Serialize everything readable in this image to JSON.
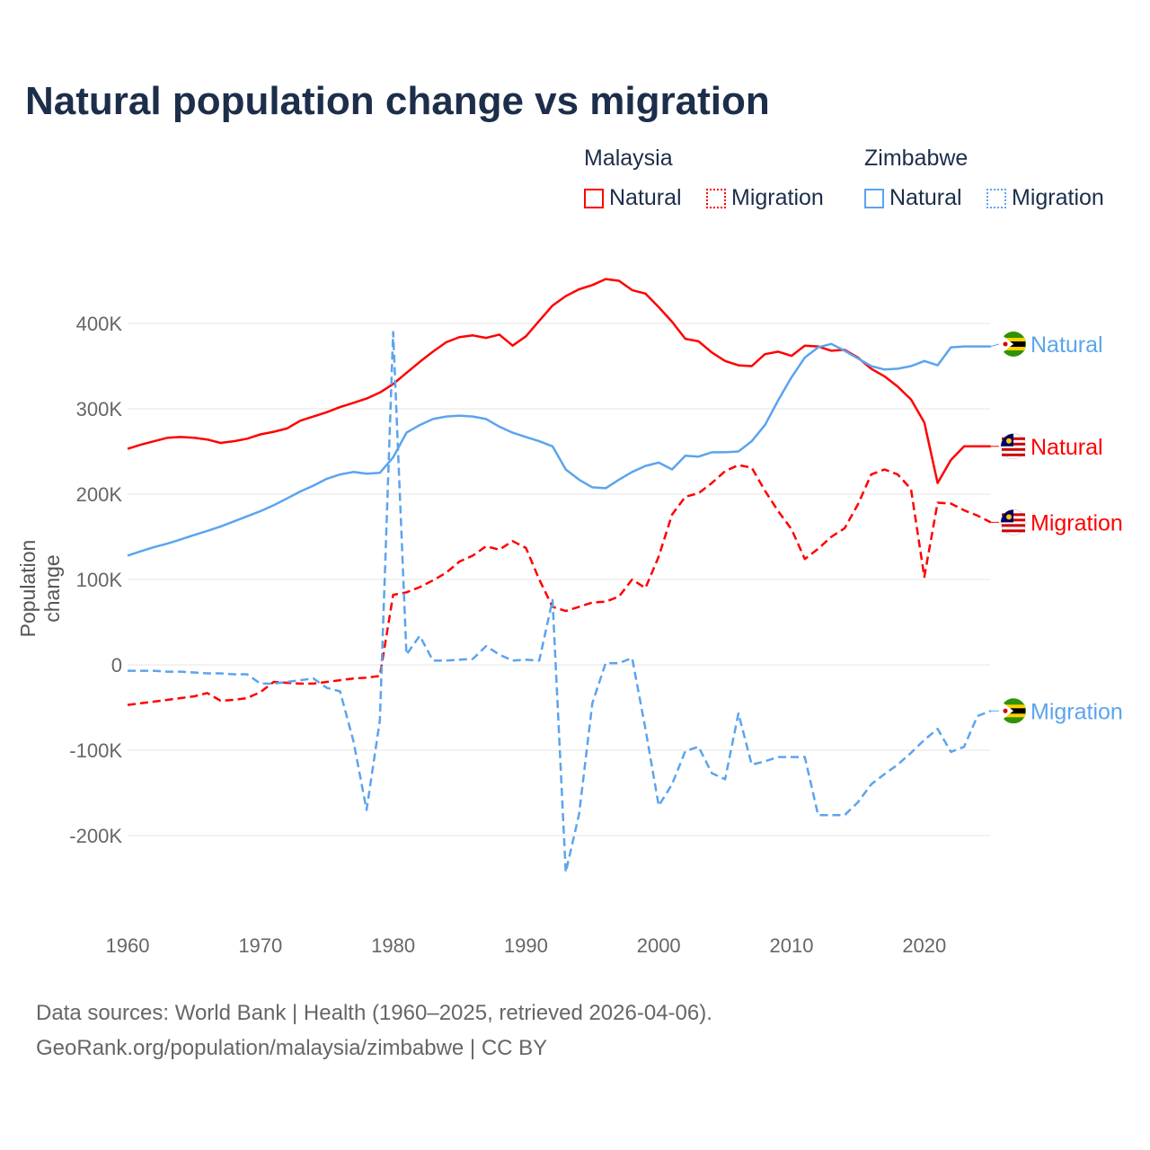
{
  "title": "Natural population change vs migration",
  "legend": {
    "groups": [
      {
        "name": "Malaysia",
        "items": [
          {
            "label": "Natural",
            "style": "solid"
          },
          {
            "label": "Migration",
            "style": "dotted"
          }
        ],
        "color": "#ff0000"
      },
      {
        "name": "Zimbabwe",
        "items": [
          {
            "label": "Natural",
            "style": "solid"
          },
          {
            "label": "Migration",
            "style": "dotted"
          }
        ],
        "color": "#5ba4ee"
      }
    ]
  },
  "footer": {
    "line1": "Data sources: World Bank | Health (1960–2025, retrieved 2026-04-06).",
    "line2": "GeoRank.org/population/malaysia/zimbabwe | CC BY"
  },
  "chart_data": {
    "type": "line",
    "title": "Natural population change vs migration",
    "xlabel": "",
    "ylabel": "Population change",
    "xlim": [
      1960,
      2025
    ],
    "ylim": [
      -270000,
      470000
    ],
    "xticks": [
      1960,
      1970,
      1980,
      1990,
      2000,
      2010,
      2020
    ],
    "xtick_labels": [
      "1960",
      "1970",
      "1980",
      "1990",
      "2000",
      "2010",
      "2020"
    ],
    "yticks": [
      -200000,
      -100000,
      0,
      100000,
      200000,
      300000,
      400000
    ],
    "ytick_labels": [
      "-200K",
      "-100K",
      "0",
      "100K",
      "200K",
      "300K",
      "400K"
    ],
    "grid": true,
    "x_start": 1960,
    "series": [
      {
        "name": "Malaysia Natural",
        "end_label": "Natural",
        "country": "Malaysia",
        "color": "#ff0000",
        "dash": false,
        "values": [
          253,
          258,
          262,
          266,
          267,
          266,
          264,
          260,
          262,
          265,
          270,
          273,
          277,
          286,
          291,
          296,
          302,
          307,
          312,
          319,
          329,
          342,
          355,
          367,
          378,
          384,
          386,
          383,
          387,
          374,
          385,
          403,
          421,
          432,
          440,
          445,
          452,
          450,
          439,
          435,
          419,
          402,
          382,
          379,
          366,
          356,
          351,
          350,
          364,
          367,
          362,
          374,
          373,
          368,
          369,
          360,
          347,
          338,
          326,
          311,
          284,
          213,
          240,
          256,
          256,
          256
        ]
      },
      {
        "name": "Malaysia Migration",
        "end_label": "Migration",
        "country": "Malaysia",
        "color": "#ff0000",
        "dash": true,
        "values": [
          -47,
          -45,
          -43,
          -41,
          -39,
          -37,
          -33,
          -42,
          -41,
          -39,
          -32,
          -20,
          -21,
          -22,
          -22,
          -20,
          -18,
          -16,
          -15,
          -13,
          82,
          85,
          91,
          99,
          108,
          121,
          128,
          139,
          135,
          145,
          137,
          100,
          68,
          63,
          68,
          73,
          74,
          80,
          100,
          90,
          127,
          176,
          197,
          201,
          213,
          227,
          234,
          231,
          204,
          180,
          159,
          124,
          136,
          150,
          160,
          188,
          223,
          229,
          223,
          206,
          103,
          190,
          189,
          181,
          175,
          167
        ]
      },
      {
        "name": "Zimbabwe Natural",
        "end_label": "Natural",
        "country": "Zimbabwe",
        "color": "#5ba4ee",
        "dash": false,
        "values": [
          128,
          133,
          138,
          142,
          147,
          152,
          157,
          162,
          168,
          174,
          180,
          187,
          195,
          203,
          210,
          218,
          223,
          226,
          224,
          225,
          243,
          272,
          281,
          288,
          291,
          292,
          291,
          288,
          279,
          272,
          267,
          262,
          256,
          229,
          217,
          208,
          207,
          217,
          226,
          233,
          237,
          229,
          245,
          244,
          249,
          249,
          250,
          262,
          281,
          310,
          337,
          360,
          372,
          376,
          368,
          359,
          350,
          346,
          347,
          350,
          356,
          351,
          372,
          373,
          373,
          373
        ]
      },
      {
        "name": "Zimbabwe Migration",
        "end_label": "Migration",
        "country": "Zimbabwe",
        "color": "#5ba4ee",
        "dash": true,
        "values": [
          -7,
          -7,
          -7,
          -8,
          -8,
          -9,
          -10,
          -10,
          -11,
          -11,
          -22,
          -22,
          -20,
          -18,
          -16,
          -27,
          -31,
          -89,
          -170,
          -65,
          390,
          12,
          34,
          5,
          5,
          6,
          7,
          22,
          12,
          5,
          6,
          5,
          76,
          -243,
          -175,
          -45,
          2,
          2,
          8,
          -75,
          -165,
          -140,
          -101,
          -96,
          -127,
          -134,
          -57,
          -117,
          -113,
          -108,
          -108,
          -108,
          -176,
          -176,
          -176,
          -161,
          -140,
          -128,
          -117,
          -103,
          -88,
          -75,
          -102,
          -96,
          -60,
          -54
        ]
      }
    ],
    "value_unit": "thousands",
    "legend_position": "top-right"
  }
}
